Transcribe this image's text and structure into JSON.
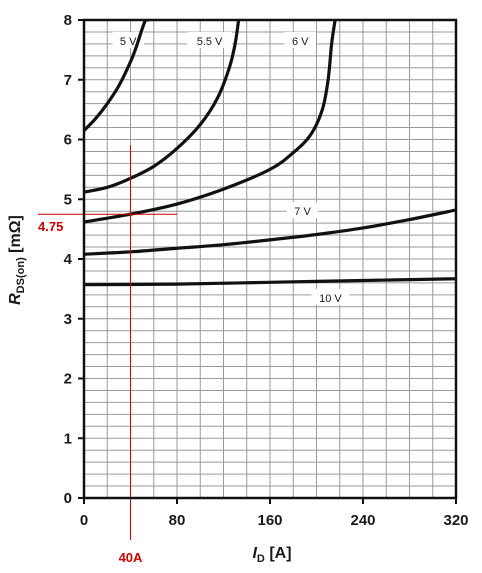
{
  "chart_data": {
    "type": "line",
    "xlabel": {
      "var": "I",
      "sub": "D",
      "unit": " [A]"
    },
    "ylabel": {
      "var": "R",
      "sub": "DS(on)",
      "unit": "  [mΩ]"
    },
    "xlim": [
      0,
      320
    ],
    "ylim": [
      0,
      8
    ],
    "x_ticks": [
      "0",
      "80",
      "160",
      "240",
      "320"
    ],
    "y_ticks": [
      "0",
      "1",
      "2",
      "3",
      "4",
      "5",
      "6",
      "7",
      "8"
    ],
    "grid": true,
    "series": [
      {
        "name": "5 V",
        "x": [
          0,
          10,
          20,
          30,
          40,
          45,
          50,
          53,
          55
        ],
        "y": [
          6.15,
          6.35,
          6.6,
          6.9,
          7.3,
          7.55,
          7.85,
          8.0,
          8.0
        ]
      },
      {
        "name": "5.5 V",
        "x": [
          0,
          20,
          40,
          60,
          80,
          100,
          115,
          125,
          130,
          133
        ],
        "y": [
          5.12,
          5.2,
          5.35,
          5.55,
          5.85,
          6.25,
          6.7,
          7.2,
          7.6,
          8.0
        ]
      },
      {
        "name": "6 V",
        "x": [
          0,
          40,
          80,
          120,
          160,
          180,
          195,
          205,
          210,
          213,
          216
        ],
        "y": [
          4.62,
          4.75,
          4.92,
          5.17,
          5.5,
          5.78,
          6.08,
          6.5,
          7.0,
          7.6,
          8.0
        ]
      },
      {
        "name": "7 V",
        "x": [
          0,
          40,
          80,
          120,
          160,
          200,
          240,
          280,
          320
        ],
        "y": [
          4.08,
          4.12,
          4.18,
          4.24,
          4.32,
          4.41,
          4.52,
          4.66,
          4.82
        ]
      },
      {
        "name": "10 V",
        "x": [
          0,
          80,
          160,
          240,
          320
        ],
        "y": [
          3.57,
          3.58,
          3.61,
          3.64,
          3.67
        ]
      }
    ],
    "annotations": [
      {
        "text": "4.75",
        "y": 4.75,
        "color": "#cc0000"
      },
      {
        "text": "40A",
        "x": 40,
        "color": "#cc0000"
      }
    ]
  }
}
